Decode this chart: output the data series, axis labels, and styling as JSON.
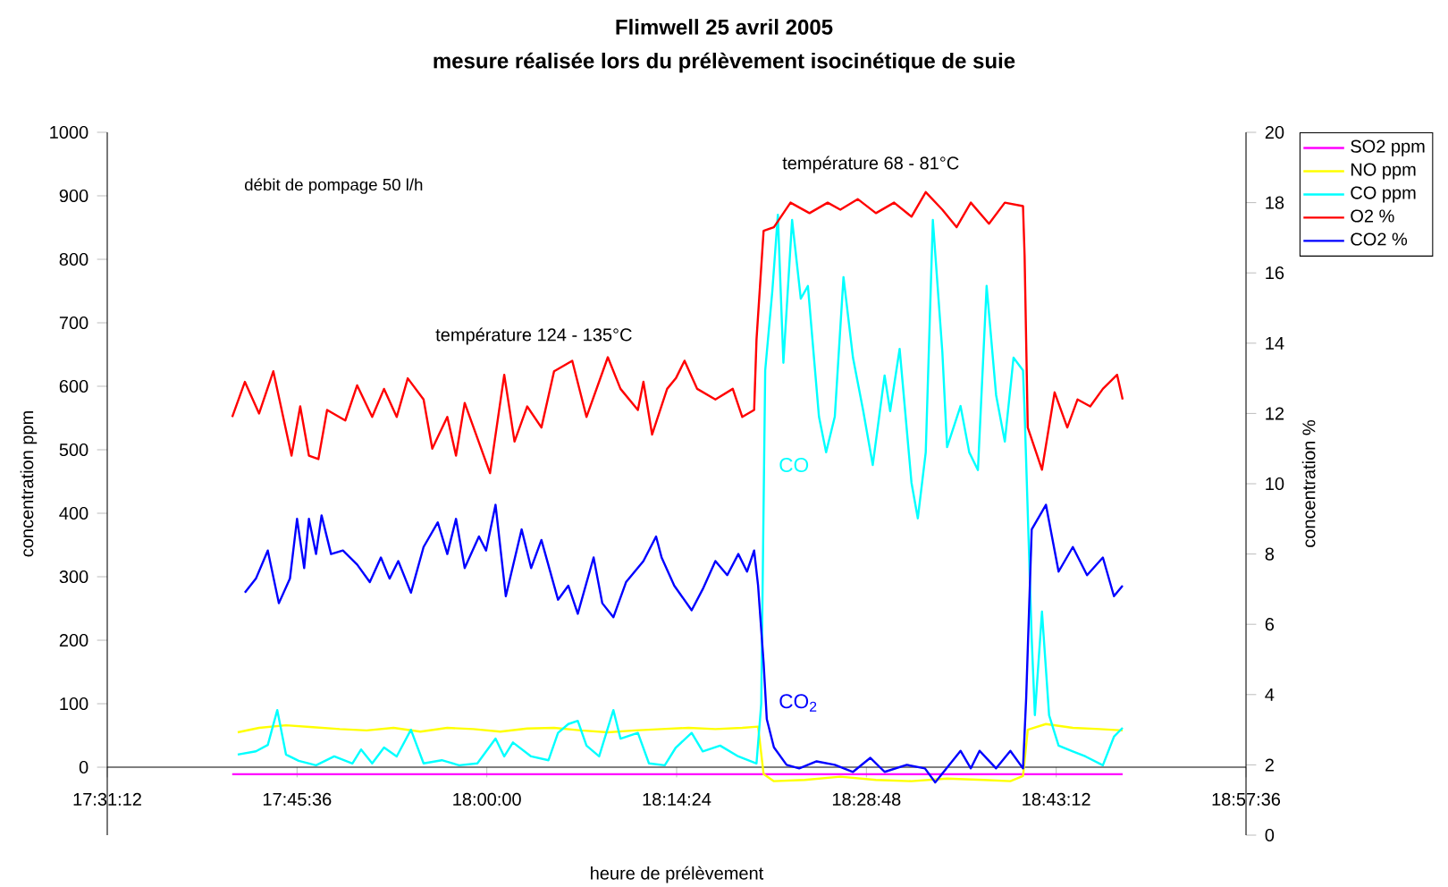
{
  "chart_data": {
    "type": "line",
    "title": "Flimwell 25 avril 2005",
    "subtitle": "mesure réalisée lors du prélèvement isocinétique de suie",
    "xlabel": "heure de prélèvement",
    "ylabel": "concentration ppm",
    "y2label": "concentration %",
    "xlim": [
      17.52,
      18.96
    ],
    "xticks": [
      {
        "value": 17.52,
        "label": "17:31:12"
      },
      {
        "value": 17.76,
        "label": "17:45:36"
      },
      {
        "value": 18.0,
        "label": "18:00:00"
      },
      {
        "value": 18.24,
        "label": "18:14:24"
      },
      {
        "value": 18.48,
        "label": "18:28:48"
      },
      {
        "value": 18.72,
        "label": "18:43:12"
      },
      {
        "value": 18.96,
        "label": "18:57:36"
      }
    ],
    "ylim": [
      -107,
      1000
    ],
    "yticks": [
      0,
      100,
      200,
      300,
      400,
      500,
      600,
      700,
      800,
      900,
      1000
    ],
    "y2lim": [
      0,
      20
    ],
    "y2ticks": [
      0,
      2,
      4,
      6,
      8,
      10,
      12,
      14,
      16,
      18,
      20
    ],
    "legend": "right",
    "annotations": [
      "débit de pompage 50 l/h",
      "température 124 - 135°C",
      "température 68 - 81°C",
      "CO",
      "CO$_{2}$"
    ],
    "series": [
      {
        "name": "SO2 ppm",
        "color": "#ff00ff",
        "x": [
          17.678,
          18.804
        ],
        "values": [
          -11,
          -11
        ]
      },
      {
        "name": "NO ppm",
        "color": "#ffff00",
        "x": [
          17.685,
          17.712,
          17.746,
          17.78,
          17.814,
          17.848,
          17.882,
          17.916,
          17.95,
          17.983,
          18.017,
          18.051,
          18.085,
          18.119,
          18.153,
          18.187,
          18.221,
          18.255,
          18.289,
          18.323,
          18.343,
          18.35,
          18.363,
          18.402,
          18.447,
          18.492,
          18.537,
          18.582,
          18.628,
          18.662,
          18.678,
          18.684,
          18.707,
          18.741,
          18.775,
          18.804
        ],
        "values": [
          55,
          62,
          66,
          63,
          60,
          58,
          62,
          56,
          62,
          60,
          56,
          61,
          62,
          58,
          55,
          58,
          60,
          62,
          60,
          62,
          64,
          -11,
          -22,
          -20,
          -15,
          -20,
          -22,
          -18,
          -20,
          -22,
          -14,
          59,
          68,
          62,
          60,
          58
        ]
      },
      {
        "name": "CO ppm",
        "color": "#00ffff",
        "x": [
          17.685,
          17.708,
          17.723,
          17.735,
          17.746,
          17.762,
          17.784,
          17.807,
          17.83,
          17.841,
          17.855,
          17.87,
          17.886,
          17.904,
          17.92,
          17.943,
          17.965,
          17.988,
          18.011,
          18.022,
          18.033,
          18.056,
          18.078,
          18.09,
          18.103,
          18.115,
          18.126,
          18.142,
          18.16,
          18.169,
          18.191,
          18.205,
          18.225,
          18.239,
          18.259,
          18.273,
          18.295,
          18.318,
          18.341,
          18.347,
          18.352,
          18.361,
          18.368,
          18.375,
          18.386,
          18.397,
          18.406,
          18.42,
          18.429,
          18.44,
          18.451,
          18.463,
          18.476,
          18.488,
          18.503,
          18.51,
          18.522,
          18.537,
          18.545,
          18.555,
          18.564,
          18.576,
          18.582,
          18.599,
          18.61,
          18.621,
          18.632,
          18.644,
          18.655,
          18.666,
          18.678,
          18.68,
          18.689,
          18.693,
          18.702,
          18.711,
          18.723,
          18.741,
          18.757,
          18.779,
          18.793,
          18.804
        ],
        "values": [
          20,
          25,
          35,
          90,
          20,
          10,
          3,
          17,
          6,
          28,
          6,
          31,
          17,
          59,
          6,
          11,
          3,
          6,
          45,
          17,
          39,
          17,
          11,
          54,
          68,
          73,
          34,
          17,
          90,
          45,
          54,
          6,
          3,
          31,
          54,
          25,
          34,
          17,
          6,
          100,
          625,
          750,
          870,
          637,
          862,
          738,
          758,
          552,
          496,
          552,
          772,
          645,
          561,
          476,
          617,
          561,
          659,
          448,
          392,
          496,
          862,
          654,
          504,
          569,
          496,
          468,
          758,
          586,
          513,
          645,
          625,
          561,
          203,
          82,
          245,
          82,
          34,
          25,
          17,
          3,
          48,
          62
        ]
      },
      {
        "name": "O2 %",
        "color": "#ff0000",
        "axis": "y2",
        "x": [
          17.678,
          17.694,
          17.712,
          17.73,
          17.753,
          17.764,
          17.775,
          17.787,
          17.798,
          17.821,
          17.836,
          17.855,
          17.87,
          17.886,
          17.9,
          17.92,
          17.931,
          17.95,
          17.961,
          17.972,
          17.988,
          18.004,
          18.022,
          18.035,
          18.051,
          18.069,
          18.085,
          18.108,
          18.126,
          18.153,
          18.169,
          18.191,
          18.198,
          18.209,
          18.228,
          18.239,
          18.25,
          18.266,
          18.289,
          18.311,
          18.323,
          18.338,
          18.341,
          18.35,
          18.363,
          18.384,
          18.408,
          18.431,
          18.447,
          18.469,
          18.492,
          18.515,
          18.537,
          18.555,
          18.576,
          18.594,
          18.612,
          18.635,
          18.655,
          18.678,
          18.68,
          18.684,
          18.702,
          18.718,
          18.734,
          18.747,
          18.763,
          18.779,
          18.797,
          18.804
        ],
        "values": [
          11.9,
          12.9,
          12.0,
          13.2,
          10.8,
          12.2,
          10.8,
          10.7,
          12.1,
          11.8,
          12.8,
          11.9,
          12.7,
          11.9,
          13.0,
          12.4,
          11.0,
          11.9,
          10.8,
          12.3,
          11.3,
          10.3,
          13.1,
          11.2,
          12.2,
          11.6,
          13.2,
          13.5,
          11.9,
          13.6,
          12.7,
          12.1,
          12.9,
          11.4,
          12.7,
          13.0,
          13.5,
          12.7,
          12.4,
          12.7,
          11.9,
          12.1,
          14.1,
          17.2,
          17.3,
          18.0,
          17.7,
          18.0,
          17.8,
          18.1,
          17.7,
          18.0,
          17.6,
          18.3,
          17.8,
          17.3,
          18.0,
          17.4,
          18.0,
          17.9,
          16.5,
          11.6,
          10.4,
          12.6,
          11.6,
          12.4,
          12.2,
          12.7,
          13.1,
          12.4
        ]
      },
      {
        "name": "CO2 %",
        "color": "#0000ff",
        "axis": "y2",
        "x": [
          17.694,
          17.708,
          17.723,
          17.737,
          17.751,
          17.76,
          17.769,
          17.775,
          17.784,
          17.791,
          17.803,
          17.818,
          17.836,
          17.852,
          17.866,
          17.877,
          17.888,
          17.904,
          17.92,
          17.938,
          17.95,
          17.961,
          17.972,
          17.99,
          17.999,
          18.011,
          18.024,
          18.044,
          18.056,
          18.069,
          18.09,
          18.103,
          18.115,
          18.135,
          18.146,
          18.16,
          18.176,
          18.198,
          18.214,
          18.221,
          18.237,
          18.259,
          18.273,
          18.289,
          18.304,
          18.318,
          18.329,
          18.338,
          18.343,
          18.35,
          18.354,
          18.363,
          18.379,
          18.395,
          18.417,
          18.44,
          18.463,
          18.485,
          18.503,
          18.531,
          18.554,
          18.567,
          18.599,
          18.612,
          18.623,
          18.644,
          18.662,
          18.678,
          18.682,
          18.689,
          18.707,
          18.723,
          18.741,
          18.759,
          18.779,
          18.793,
          18.804
        ],
        "values": [
          6.9,
          7.3,
          8.1,
          6.6,
          7.3,
          9.0,
          7.6,
          9.0,
          8.0,
          9.1,
          8.0,
          8.1,
          7.7,
          7.2,
          7.9,
          7.3,
          7.8,
          6.9,
          8.2,
          8.9,
          8.0,
          9.0,
          7.6,
          8.5,
          8.1,
          9.4,
          6.8,
          8.7,
          7.6,
          8.4,
          6.7,
          7.1,
          6.3,
          7.9,
          6.6,
          6.2,
          7.2,
          7.8,
          8.5,
          7.9,
          7.1,
          6.4,
          7.0,
          7.8,
          7.4,
          8.0,
          7.5,
          8.1,
          7.1,
          4.9,
          3.3,
          2.5,
          2.0,
          1.9,
          2.1,
          2.0,
          1.8,
          2.2,
          1.8,
          2.0,
          1.9,
          1.5,
          2.4,
          1.9,
          2.4,
          1.9,
          2.4,
          1.9,
          3.9,
          8.7,
          9.4,
          7.5,
          8.2,
          7.4,
          7.9,
          6.8,
          7.1
        ]
      }
    ]
  }
}
